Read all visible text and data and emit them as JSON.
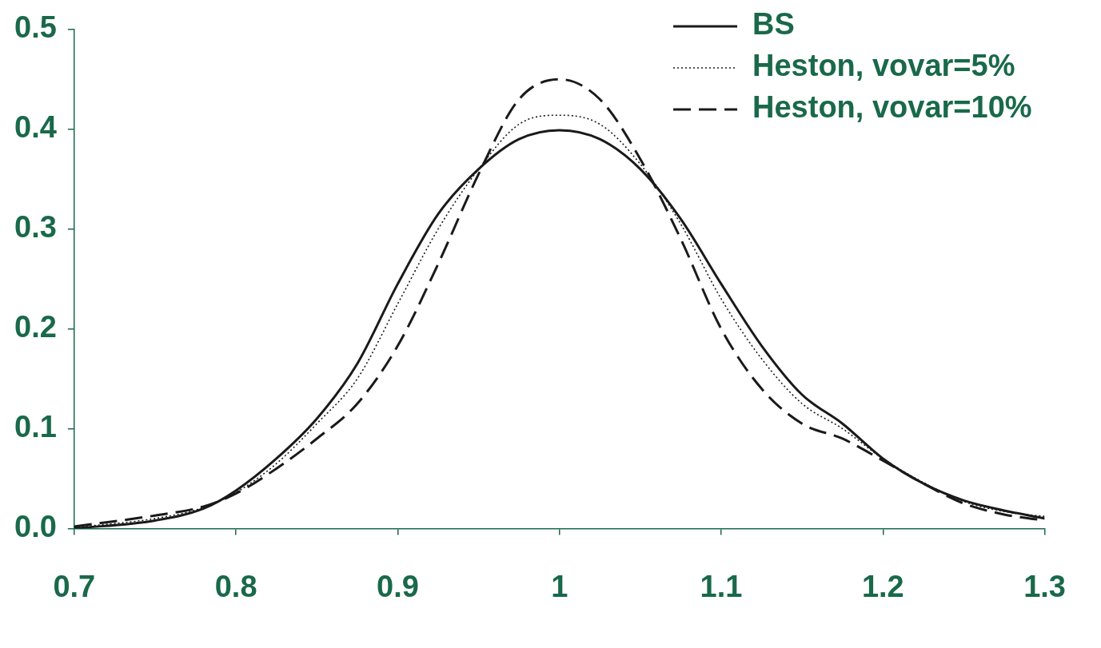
{
  "chart_data": {
    "type": "line",
    "x": [
      0.7,
      0.75,
      0.78,
      0.8,
      0.825,
      0.85,
      0.875,
      0.9,
      0.925,
      0.95,
      0.975,
      1.0,
      1.025,
      1.05,
      1.075,
      1.1,
      1.125,
      1.15,
      1.175,
      1.2,
      1.225,
      1.25,
      1.275,
      1.3
    ],
    "series": [
      {
        "name": "BS",
        "color": "#1a1a1a",
        "line_style": "solid",
        "values": [
          0.0,
          0.008,
          0.02,
          0.038,
          0.07,
          0.11,
          0.165,
          0.245,
          0.315,
          0.36,
          0.39,
          0.399,
          0.39,
          0.36,
          0.31,
          0.245,
          0.183,
          0.134,
          0.105,
          0.07,
          0.045,
          0.028,
          0.018,
          0.01
        ]
      },
      {
        "name": "Heston, vovar=5%",
        "color": "#1a1a1a",
        "line_style": "dotted",
        "values": [
          0.001,
          0.01,
          0.021,
          0.036,
          0.065,
          0.105,
          0.15,
          0.225,
          0.3,
          0.36,
          0.405,
          0.414,
          0.405,
          0.365,
          0.305,
          0.23,
          0.17,
          0.125,
          0.1,
          0.07,
          0.046,
          0.027,
          0.017,
          0.012
        ]
      },
      {
        "name": "Heston, vovar=10%",
        "color": "#1a1a1a",
        "line_style": "dashed",
        "values": [
          0.002,
          0.013,
          0.022,
          0.035,
          0.06,
          0.09,
          0.125,
          0.183,
          0.265,
          0.355,
          0.43,
          0.45,
          0.43,
          0.37,
          0.29,
          0.2,
          0.14,
          0.105,
          0.09,
          0.068,
          0.045,
          0.025,
          0.014,
          0.008
        ]
      }
    ],
    "xlim": [
      0.7,
      1.3
    ],
    "xticks": [
      0.7,
      0.8,
      0.9,
      1,
      1.1,
      1.2,
      1.3
    ],
    "ylim": [
      0,
      0.5
    ],
    "yticks": [
      {
        "value": 0,
        "label": "0.0"
      },
      0.1,
      0.2,
      0.3,
      0.4,
      0.5
    ],
    "grid": false,
    "legend": "top right",
    "marker": "none"
  }
}
